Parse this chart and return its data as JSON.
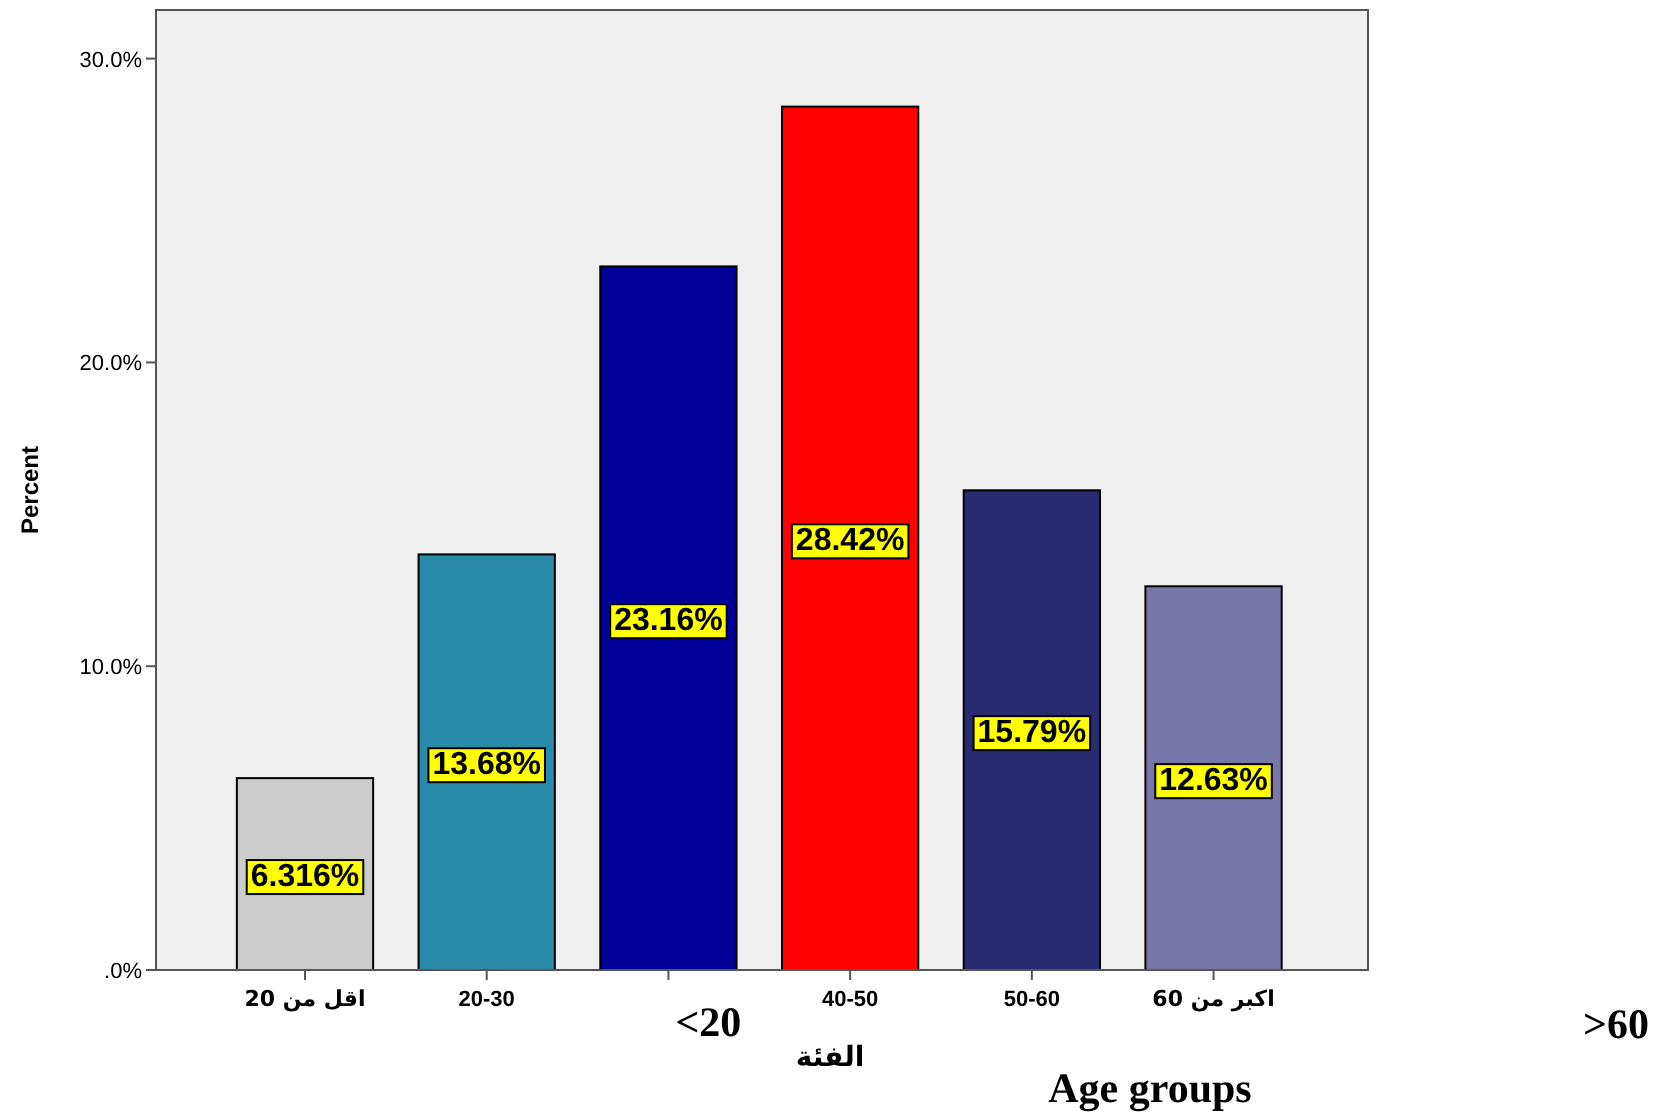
{
  "chart_data": {
    "type": "bar",
    "categories": [
      "اقل من 20",
      "20-30",
      "<20",
      "40-50",
      "50-60",
      "اكبر من 60"
    ],
    "values": [
      6.316,
      13.68,
      23.16,
      28.42,
      15.79,
      12.63
    ],
    "colors": [
      "#cccccc",
      "#2a8aaa",
      "#000099",
      "#ff0000",
      "#2a2a70",
      "#7878a8"
    ],
    "value_labels": [
      "6.316%",
      "13.68%",
      "23.16%",
      "28.42%",
      "15.79%",
      "12.63%"
    ],
    "ylim": [
      0,
      31.6
    ],
    "yticks": [
      {
        "value": 0,
        "label": ".0%"
      },
      {
        "value": 10,
        "label": "10.0%"
      },
      {
        "value": 20,
        "label": "20.0%"
      },
      {
        "value": 30,
        "label": "30.0%"
      }
    ],
    "xlabel": "الفئة",
    "ylabel": "Percent",
    "annotations": [
      ">60",
      "Age groups"
    ]
  }
}
